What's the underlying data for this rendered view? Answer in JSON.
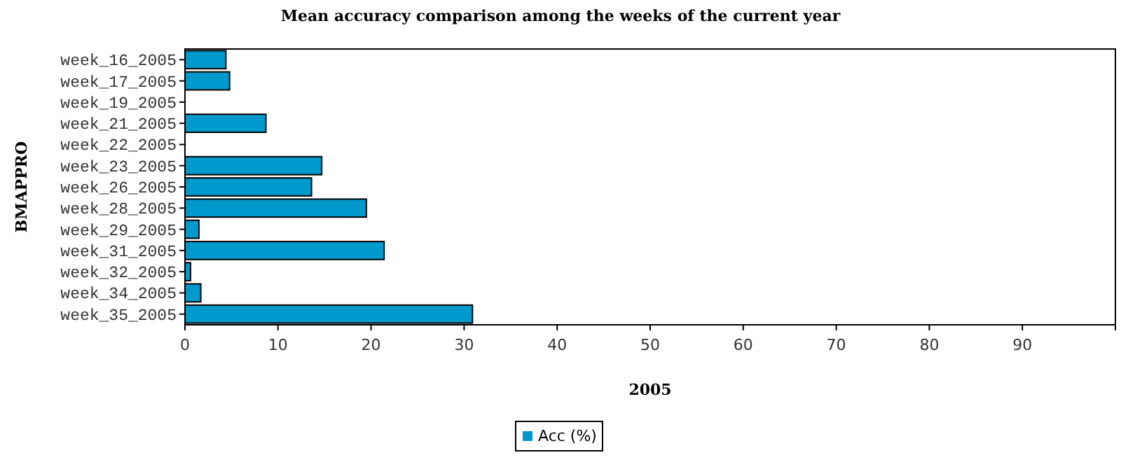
{
  "chart_data": {
    "type": "bar",
    "orientation": "horizontal",
    "title": "Mean accuracy comparison among the weeks of the current year",
    "xlabel": "2005",
    "ylabel": "BMAPPRO",
    "categories": [
      "week_16_2005",
      "week_17_2005",
      "week_19_2005",
      "week_21_2005",
      "week_22_2005",
      "week_23_2005",
      "week_26_2005",
      "week_28_2005",
      "week_29_2005",
      "week_31_2005",
      "week_32_2005",
      "week_34_2005",
      "week_35_2005"
    ],
    "series": [
      {
        "name": "Acc (%)",
        "color": "#0099cc",
        "values": [
          4.4,
          4.8,
          0,
          8.7,
          0,
          14.7,
          13.6,
          19.5,
          1.5,
          21.4,
          0.6,
          1.7,
          30.9
        ]
      }
    ],
    "xlim": [
      0,
      100
    ],
    "xticks": [
      0,
      10,
      20,
      30,
      40,
      50,
      60,
      70,
      80,
      90,
      {
        "value": 100,
        "label": null
      }
    ],
    "grid": false,
    "legend": "bottom"
  }
}
